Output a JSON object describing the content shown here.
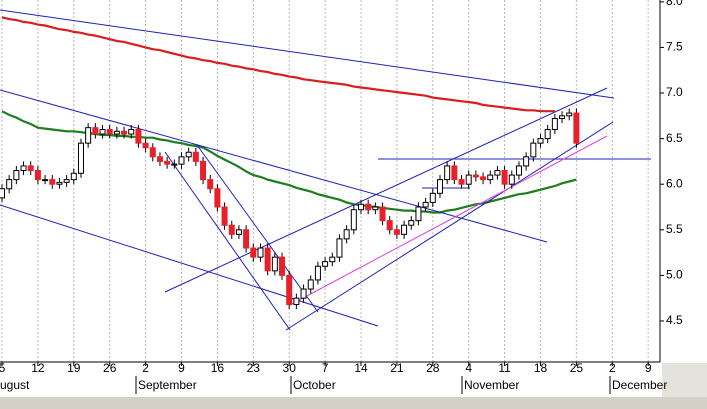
{
  "chart_data": {
    "type": "candlestick",
    "categories": [
      "5",
      null,
      null,
      null,
      null,
      "12",
      null,
      null,
      null,
      null,
      "19",
      null,
      null,
      null,
      null,
      "26",
      null,
      null,
      null,
      null,
      "2",
      null,
      null,
      null,
      null,
      "9",
      null,
      null,
      null,
      null,
      "16",
      null,
      null,
      null,
      null,
      "23",
      null,
      null,
      null,
      null,
      "30",
      null,
      null,
      null,
      null,
      "7",
      null,
      null,
      null,
      null,
      "14",
      null,
      null,
      null,
      null,
      "21",
      null,
      null,
      null,
      null,
      "28",
      null,
      null,
      null,
      null,
      "4",
      null,
      null,
      null,
      null,
      "11",
      null,
      null,
      null,
      null,
      "18",
      null,
      null,
      null,
      null,
      "25",
      null,
      null,
      null,
      null,
      "2",
      null,
      null,
      null,
      null,
      "9"
    ],
    "month_labels": [
      "ugust",
      "September",
      "October",
      "November",
      "December"
    ],
    "open": [
      5.85,
      5.95,
      6.05,
      6.15,
      6.2,
      6.15,
      6.05,
      6.05,
      6.0,
      6.02,
      6.05,
      6.12,
      6.45,
      6.62,
      6.55,
      6.6,
      6.55,
      6.58,
      6.55,
      6.6,
      6.45,
      6.4,
      6.3,
      6.25,
      6.22,
      6.22,
      6.3,
      6.35,
      6.25,
      6.05,
      5.95,
      5.75,
      5.55,
      5.45,
      5.5,
      5.3,
      5.2,
      5.3,
      5.05,
      5.2,
      5.0,
      4.68,
      4.75,
      4.85,
      4.95,
      5.1,
      5.15,
      5.2,
      5.4,
      5.5,
      5.72,
      5.78,
      5.72,
      5.75,
      5.6,
      5.5,
      5.45,
      5.55,
      5.6,
      5.75,
      5.8,
      5.9,
      6.05,
      6.2,
      6.05,
      6.0,
      6.1,
      6.08,
      6.05,
      6.1,
      6.15,
      6.0,
      6.1,
      6.2,
      6.3,
      6.45,
      6.5,
      6.6,
      6.72,
      6.75,
      6.78,
      null,
      null,
      null,
      null,
      null,
      null,
      null,
      null,
      null,
      null
    ],
    "high": [
      6.0,
      6.1,
      6.2,
      6.25,
      6.25,
      6.2,
      6.1,
      6.1,
      6.07,
      6.1,
      6.17,
      6.5,
      6.67,
      6.67,
      6.65,
      6.65,
      6.63,
      6.63,
      6.65,
      6.65,
      6.5,
      6.45,
      6.35,
      6.3,
      6.27,
      6.35,
      6.4,
      6.4,
      6.3,
      6.1,
      6.0,
      5.8,
      5.6,
      5.55,
      5.55,
      5.35,
      5.35,
      5.35,
      5.25,
      5.25,
      5.05,
      4.8,
      4.9,
      5.0,
      5.15,
      5.2,
      5.25,
      5.45,
      5.55,
      5.77,
      5.83,
      5.83,
      5.8,
      5.8,
      5.65,
      5.55,
      5.6,
      5.65,
      5.8,
      5.85,
      5.95,
      6.1,
      6.25,
      6.25,
      6.1,
      6.15,
      6.15,
      6.13,
      6.15,
      6.2,
      6.2,
      6.15,
      6.25,
      6.35,
      6.5,
      6.55,
      6.65,
      6.77,
      6.8,
      6.83,
      6.83,
      null,
      null,
      null,
      null,
      null,
      null,
      null,
      null,
      null,
      null
    ],
    "low": [
      5.8,
      5.9,
      6.0,
      6.1,
      6.1,
      6.0,
      6.0,
      5.95,
      5.95,
      5.97,
      6.0,
      6.07,
      6.4,
      6.5,
      6.5,
      6.5,
      6.5,
      6.5,
      6.5,
      6.4,
      6.35,
      6.25,
      6.2,
      6.17,
      6.17,
      6.17,
      6.25,
      6.2,
      6.0,
      5.9,
      5.7,
      5.5,
      5.4,
      5.4,
      5.25,
      5.15,
      5.15,
      5.0,
      5.0,
      4.95,
      4.63,
      4.63,
      4.7,
      4.8,
      4.9,
      5.05,
      5.1,
      5.15,
      5.35,
      5.45,
      5.67,
      5.67,
      5.67,
      5.55,
      5.45,
      5.4,
      5.4,
      5.5,
      5.55,
      5.7,
      5.75,
      5.85,
      6.0,
      6.0,
      5.95,
      5.95,
      6.03,
      6.0,
      6.0,
      6.05,
      5.95,
      5.95,
      6.05,
      6.15,
      6.25,
      6.4,
      6.45,
      6.55,
      6.67,
      6.7,
      6.4,
      null,
      null,
      null,
      null,
      null,
      null,
      null,
      null,
      null,
      null
    ],
    "close": [
      5.95,
      6.05,
      6.15,
      6.2,
      6.15,
      6.05,
      6.05,
      6.0,
      6.02,
      6.05,
      6.12,
      6.45,
      6.62,
      6.55,
      6.6,
      6.55,
      6.58,
      6.55,
      6.6,
      6.45,
      6.4,
      6.3,
      6.25,
      6.22,
      6.22,
      6.3,
      6.35,
      6.25,
      6.05,
      5.95,
      5.75,
      5.55,
      5.45,
      5.5,
      5.3,
      5.2,
      5.3,
      5.05,
      5.2,
      5.0,
      4.68,
      4.75,
      4.85,
      4.95,
      5.1,
      5.15,
      5.2,
      5.4,
      5.5,
      5.72,
      5.78,
      5.72,
      5.75,
      5.6,
      5.5,
      5.45,
      5.55,
      5.6,
      5.75,
      5.8,
      5.9,
      6.05,
      6.2,
      6.05,
      6.0,
      6.1,
      6.08,
      6.05,
      6.1,
      6.15,
      6.0,
      6.1,
      6.2,
      6.3,
      6.45,
      6.5,
      6.6,
      6.72,
      6.75,
      6.78,
      6.45,
      null,
      null,
      null,
      null,
      null,
      null,
      null,
      null,
      null,
      null
    ],
    "up_color": "#ffffff",
    "down_color": "#e8202a",
    "series": [
      {
        "color": "#d81e1e",
        "values": [
          7.83,
          7.81,
          7.8,
          7.78,
          7.77,
          7.75,
          7.74,
          7.72,
          7.7,
          7.69,
          7.67,
          7.66,
          7.64,
          7.63,
          7.61,
          7.59,
          7.57,
          7.56,
          7.54,
          7.52,
          7.5,
          7.48,
          7.47,
          7.45,
          7.43,
          7.41,
          7.39,
          7.38,
          7.36,
          7.35,
          7.33,
          7.32,
          7.3,
          7.29,
          7.27,
          7.26,
          7.24,
          7.23,
          7.21,
          7.2,
          7.18,
          7.17,
          7.15,
          7.14,
          7.13,
          7.12,
          7.11,
          7.1,
          7.09,
          7.07,
          7.06,
          7.05,
          7.04,
          7.03,
          7.02,
          7.01,
          7.0,
          6.99,
          6.98,
          6.97,
          6.95,
          6.94,
          6.93,
          6.92,
          6.91,
          6.9,
          6.89,
          6.87,
          6.86,
          6.85,
          6.84,
          6.83,
          6.82,
          6.81,
          6.81,
          6.8,
          6.8,
          6.8,
          null,
          null,
          null,
          null,
          null,
          null,
          null,
          null,
          null,
          null,
          null,
          null,
          null
        ]
      },
      {
        "color": "#1e7d1e",
        "values": [
          6.8,
          6.76,
          6.73,
          6.69,
          6.66,
          6.62,
          6.61,
          6.6,
          6.59,
          6.58,
          6.58,
          6.57,
          6.56,
          6.55,
          6.54,
          6.54,
          6.53,
          6.53,
          6.52,
          6.52,
          6.51,
          6.51,
          6.49,
          6.48,
          6.46,
          6.45,
          6.43,
          6.42,
          6.4,
          6.36,
          6.31,
          6.27,
          6.23,
          6.19,
          6.14,
          6.1,
          6.08,
          6.05,
          6.03,
          6.01,
          5.99,
          5.96,
          5.94,
          5.92,
          5.89,
          5.87,
          5.85,
          5.83,
          5.8,
          5.78,
          5.77,
          5.76,
          5.75,
          5.74,
          5.73,
          5.72,
          5.71,
          5.71,
          5.7,
          5.7,
          5.69,
          5.69,
          5.71,
          5.72,
          5.74,
          5.76,
          5.78,
          5.79,
          5.81,
          5.83,
          5.85,
          5.87,
          5.89,
          5.9,
          5.92,
          5.94,
          5.96,
          5.98,
          6.01,
          6.03,
          6.05,
          null,
          null,
          null,
          null,
          null,
          null,
          null,
          null,
          null,
          null
        ]
      }
    ],
    "ylim": [
      4.05,
      8.02
    ],
    "yticks": [
      {
        "value": 8,
        "label": "8.0"
      },
      {
        "value": 7.5,
        "label": "7.5"
      },
      {
        "value": 7,
        "label": "7.0"
      },
      {
        "value": 6.5,
        "label": "6.5"
      },
      {
        "value": 6,
        "label": "6.0"
      },
      {
        "value": 5.5,
        "label": "5.5"
      },
      {
        "value": 5,
        "label": "5.0"
      },
      {
        "value": 4.5,
        "label": "4.5"
      }
    ],
    "grid": true
  }
}
